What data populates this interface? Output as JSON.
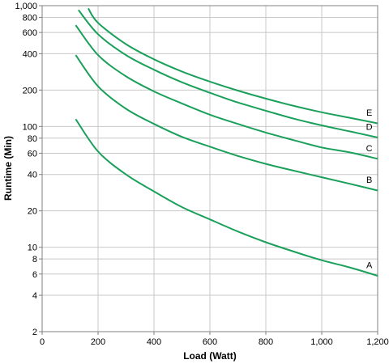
{
  "chart_data": {
    "type": "line",
    "title": "",
    "xlabel": "Load (Watt)",
    "ylabel": "Runtime (Min)",
    "x_scale": "linear",
    "y_scale": "log",
    "xlim": [
      0,
      1200
    ],
    "ylim": [
      2,
      1000
    ],
    "grid": true,
    "line_color": "#1aa05a",
    "x_ticks": [
      {
        "value": 0,
        "label": "0"
      },
      {
        "value": 200,
        "label": "200"
      },
      {
        "value": 400,
        "label": "400"
      },
      {
        "value": 600,
        "label": "600"
      },
      {
        "value": 800,
        "label": "800"
      },
      {
        "value": 1000,
        "label": "1,000"
      },
      {
        "value": 1200,
        "label": "1,200"
      }
    ],
    "y_ticks": [
      {
        "value": 1000,
        "label": "1,000"
      },
      {
        "value": 800,
        "label": "800"
      },
      {
        "value": 600,
        "label": "600"
      },
      {
        "value": 400,
        "label": "400"
      },
      {
        "value": 200,
        "label": "200"
      },
      {
        "value": 100,
        "label": "100"
      },
      {
        "value": 80,
        "label": "80"
      },
      {
        "value": 60,
        "label": "60"
      },
      {
        "value": 40,
        "label": "40"
      },
      {
        "value": 20,
        "label": "20"
      },
      {
        "value": 10,
        "label": "10"
      },
      {
        "value": 8,
        "label": "8"
      },
      {
        "value": 6,
        "label": "6"
      },
      {
        "value": 4,
        "label": "4"
      },
      {
        "value": 2,
        "label": "2"
      }
    ],
    "series": [
      {
        "name": "A",
        "x": [
          120,
          200,
          300,
          400,
          500,
          600,
          700,
          800,
          900,
          1000,
          1100,
          1200
        ],
        "values": [
          115,
          62,
          40,
          29,
          21.5,
          17,
          13.5,
          11,
          9.2,
          7.8,
          6.8,
          5.8
        ]
      },
      {
        "name": "B",
        "x": [
          120,
          200,
          300,
          400,
          500,
          600,
          700,
          800,
          900,
          1000,
          1100,
          1200
        ],
        "values": [
          390,
          215,
          140,
          105,
          82,
          68,
          57,
          49,
          43,
          38,
          33.5,
          29.5
        ]
      },
      {
        "name": "C",
        "x": [
          120,
          200,
          300,
          400,
          500,
          600,
          700,
          800,
          900,
          1000,
          1100,
          1200
        ],
        "values": [
          690,
          390,
          260,
          195,
          155,
          125,
          105,
          89,
          77,
          67,
          61,
          54
        ]
      },
      {
        "name": "D",
        "x": [
          130,
          200,
          300,
          400,
          500,
          600,
          700,
          800,
          900,
          1000,
          1100,
          1200
        ],
        "values": [
          920,
          580,
          390,
          295,
          232,
          190,
          158,
          135,
          116,
          102,
          91,
          81
        ]
      },
      {
        "name": "E",
        "x": [
          165,
          200,
          300,
          400,
          500,
          600,
          700,
          800,
          900,
          1000,
          1100,
          1200
        ],
        "values": [
          950,
          720,
          480,
          360,
          285,
          235,
          198,
          170,
          148,
          131,
          118,
          106
        ]
      }
    ]
  }
}
